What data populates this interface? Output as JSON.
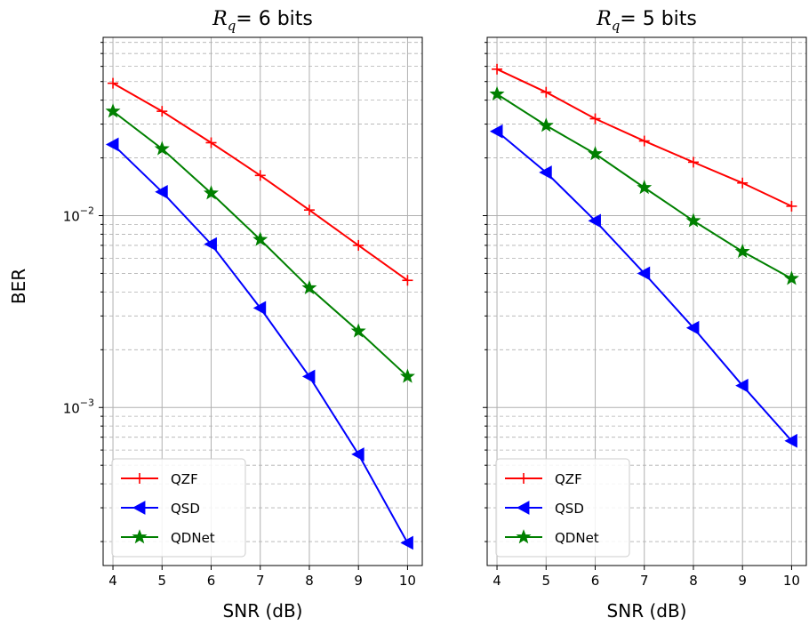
{
  "figure": {
    "ylabel": "BER",
    "colors": {
      "QZF": "#ff0000",
      "QSD": "#0000ff",
      "QDNet": "#008000"
    }
  },
  "chart_data": [
    {
      "type": "line",
      "title": {
        "var": "R",
        "sub": "q",
        "rest": "= 6 bits"
      },
      "xlabel": "SNR (dB)",
      "ylabel": "BER",
      "yscale": "log",
      "x": [
        4,
        5,
        6,
        7,
        8,
        9,
        10
      ],
      "xlim": [
        3.8,
        10.3
      ],
      "ylim": [
        0.00015,
        0.085
      ],
      "grid": "major solid, minor dashed",
      "legend": "lower-left",
      "series": [
        {
          "name": "QZF",
          "marker": "plus",
          "values": [
            0.049,
            0.035,
            0.024,
            0.0162,
            0.0107,
            0.007,
            0.0046
          ]
        },
        {
          "name": "QSD",
          "marker": "triangle-left",
          "values": [
            0.0235,
            0.0133,
            0.0071,
            0.0033,
            0.00145,
            0.00057,
            0.000197
          ]
        },
        {
          "name": "QDNet",
          "marker": "star",
          "values": [
            0.035,
            0.0223,
            0.0131,
            0.0075,
            0.0042,
            0.0025,
            0.00145
          ]
        }
      ]
    },
    {
      "type": "line",
      "title": {
        "var": "R",
        "sub": "q",
        "rest": "= 5 bits"
      },
      "xlabel": "SNR (dB)",
      "yscale": "log",
      "x": [
        4,
        5,
        6,
        7,
        8,
        9,
        10
      ],
      "xlim": [
        3.8,
        10.3
      ],
      "ylim": [
        0.00015,
        0.085
      ],
      "grid": "major solid, minor dashed",
      "legend": "lower-left",
      "series": [
        {
          "name": "QZF",
          "marker": "plus",
          "values": [
            0.058,
            0.044,
            0.032,
            0.0245,
            0.019,
            0.0148,
            0.0112
          ]
        },
        {
          "name": "QSD",
          "marker": "triangle-left",
          "values": [
            0.0275,
            0.0168,
            0.0094,
            0.005,
            0.0026,
            0.0013,
            0.00067
          ]
        },
        {
          "name": "QDNet",
          "marker": "star",
          "values": [
            0.043,
            0.0295,
            0.021,
            0.014,
            0.0094,
            0.0065,
            0.0047
          ]
        }
      ]
    }
  ]
}
